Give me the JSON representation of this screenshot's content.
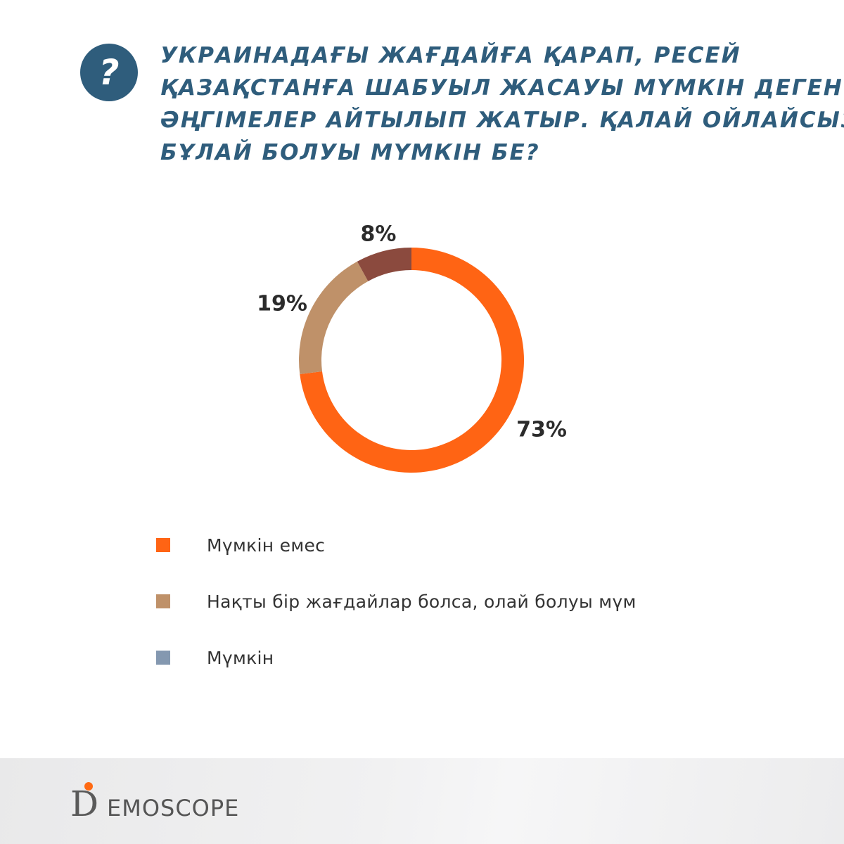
{
  "badge": {
    "symbol": "?"
  },
  "title_lines": [
    "УКРАИНАДАҒЫ ЖАҒДАЙҒА ҚАРАП, РЕСЕЙ",
    "ҚАЗАҚСТАНҒА ШАБУЫЛ ЖАСАУЫ МҮМКІН ДЕГЕН",
    "ӘҢГІМЕЛЕР АЙТЫЛЫП ЖАТЫР. ҚАЛАЙ ОЙЛАЙСЫЗ,",
    "БҰЛАЙ БОЛУЫ МҮМКІН БЕ?"
  ],
  "chart_data": {
    "type": "pie",
    "variant": "donut",
    "slices": [
      {
        "name": "Мүмкін емес",
        "value": 73,
        "label": "73%",
        "color": "#ff6414"
      },
      {
        "name": "Нақты бір жағдайлар болса, олай болуы мүм",
        "value": 19,
        "label": "19%",
        "color": "#bf9169"
      },
      {
        "name": "Мүмкін",
        "value": 8,
        "label": "8%",
        "color": "#8b4a3e"
      }
    ],
    "legend": {
      "position": "bottom-left",
      "items": [
        {
          "label": "Мүмкін емес",
          "color": "#ff6414"
        },
        {
          "label": "Нақты бір жағдайлар болса, олай болуы мүм",
          "color": "#bf9169"
        },
        {
          "label": "Мүмкін",
          "color": "#8498b0"
        }
      ]
    }
  },
  "logo": {
    "mark": "D",
    "text": "EMOSCOPE",
    "accent": "#ff6a13"
  }
}
